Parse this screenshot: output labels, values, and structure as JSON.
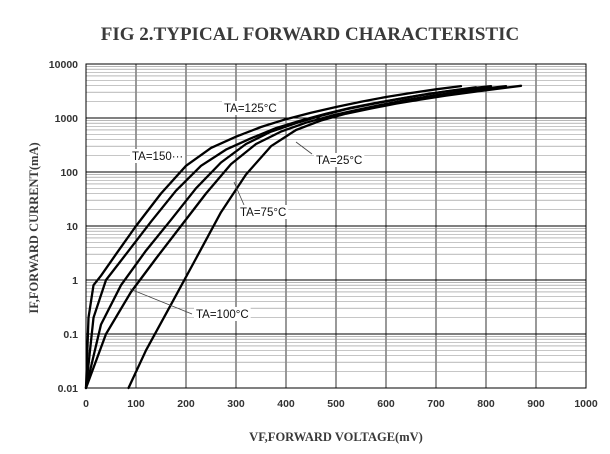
{
  "chart_data": {
    "type": "line",
    "title": "FIG 2.TYPICAL FORWARD CHARACTERISTIC",
    "xlabel": "VF,FORWARD   VOLTAGE(mV)",
    "ylabel": "IF,FORWARD   CURRENT(mA)",
    "xlim": [
      0,
      1000
    ],
    "ylim": [
      0.01,
      10000
    ],
    "yscale": "log",
    "grid": true,
    "x_ticks": [
      "0",
      "100",
      "200",
      "300",
      "400",
      "500",
      "600",
      "700",
      "800",
      "900",
      "1000"
    ],
    "y_ticks": [
      "0.01",
      "0.1",
      "1",
      "10",
      "100",
      "1000",
      "10000"
    ],
    "series": [
      {
        "label": "TA=150···",
        "x": [
          0,
          5,
          15,
          30,
          60,
          100,
          150,
          200,
          250,
          300,
          350,
          400,
          450,
          500,
          550,
          600,
          650,
          700,
          750
        ],
        "y": [
          0.01,
          0.2,
          0.8,
          1.2,
          3,
          10,
          40,
          130,
          280,
          450,
          680,
          950,
          1250,
          1600,
          2000,
          2450,
          2900,
          3400,
          3900
        ]
      },
      {
        "label": "TA=125°C",
        "x": [
          0,
          15,
          40,
          80,
          130,
          180,
          230,
          280,
          330,
          380,
          430,
          480,
          530,
          580,
          630,
          680,
          730,
          780
        ],
        "y": [
          0.01,
          0.2,
          1,
          3,
          12,
          45,
          130,
          260,
          420,
          650,
          900,
          1200,
          1550,
          1900,
          2300,
          2750,
          3200,
          3700
        ]
      },
      {
        "label": "TA=100°C",
        "x": [
          0,
          30,
          70,
          120,
          170,
          220,
          270,
          320,
          370,
          420,
          470,
          520,
          570,
          620,
          670,
          720,
          770,
          810
        ],
        "y": [
          0.01,
          0.15,
          0.8,
          3.5,
          13,
          50,
          150,
          330,
          560,
          800,
          1100,
          1450,
          1800,
          2200,
          2650,
          3100,
          3550,
          3900
        ]
      },
      {
        "label": "TA=75°C",
        "x": [
          0,
          40,
          90,
          140,
          190,
          240,
          290,
          340,
          390,
          440,
          490,
          540,
          590,
          640,
          690,
          740,
          790,
          840
        ],
        "y": [
          0.01,
          0.1,
          0.6,
          2.5,
          10,
          40,
          140,
          330,
          560,
          820,
          1100,
          1400,
          1750,
          2150,
          2550,
          3000,
          3450,
          3900
        ]
      },
      {
        "label": "TA=25°C",
        "x": [
          85,
          120,
          170,
          220,
          270,
          320,
          370,
          420,
          470,
          520,
          570,
          620,
          670,
          720,
          770,
          820,
          870
        ],
        "y": [
          0.01,
          0.05,
          0.35,
          2.5,
          18,
          90,
          300,
          600,
          900,
          1200,
          1500,
          1850,
          2200,
          2600,
          3000,
          3450,
          3950
        ]
      }
    ],
    "annotations": [
      {
        "text": "TA=125°C"
      },
      {
        "text": "TA=150···"
      },
      {
        "text": "TA=25°C"
      },
      {
        "text": "TA=75°C"
      },
      {
        "text": "TA=100°C"
      }
    ]
  }
}
